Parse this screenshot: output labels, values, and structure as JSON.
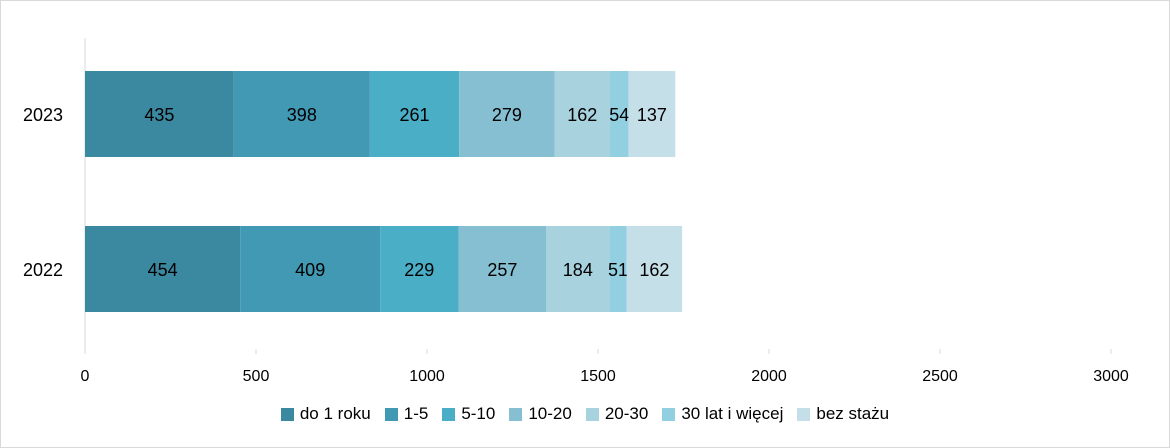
{
  "chart_data": {
    "type": "bar",
    "orientation": "horizontal",
    "stacked": true,
    "categories": [
      "2023",
      "2022"
    ],
    "series": [
      {
        "name": "do 1 roku",
        "values": [
          435,
          454
        ],
        "color": "#3a89a0"
      },
      {
        "name": "1-5",
        "values": [
          398,
          409
        ],
        "color": "#4299b3"
      },
      {
        "name": "5-10",
        "values": [
          261,
          229
        ],
        "color": "#4aaec7"
      },
      {
        "name": "10-20",
        "values": [
          279,
          257
        ],
        "color": "#86bfd2"
      },
      {
        "name": "20-30",
        "values": [
          162,
          184
        ],
        "color": "#a9d2df"
      },
      {
        "name": "30 lat i więcej",
        "values": [
          54,
          51
        ],
        "color": "#92cfe0"
      },
      {
        "name": "bez stażu",
        "values": [
          137,
          162
        ],
        "color": "#c5dfe8"
      }
    ],
    "xlim": [
      0,
      3000
    ],
    "xticks": [
      "0",
      "500",
      "1000",
      "1500",
      "2000",
      "2500",
      "3000"
    ],
    "grid": false,
    "legend_position": "bottom"
  }
}
